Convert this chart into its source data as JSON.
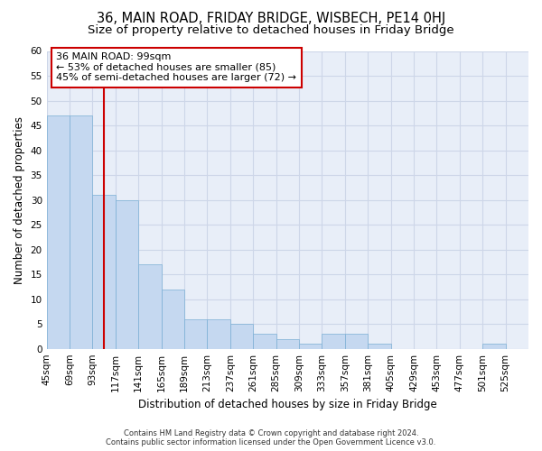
{
  "title1": "36, MAIN ROAD, FRIDAY BRIDGE, WISBECH, PE14 0HJ",
  "title2": "Size of property relative to detached houses in Friday Bridge",
  "xlabel": "Distribution of detached houses by size in Friday Bridge",
  "ylabel": "Number of detached properties",
  "footer1": "Contains HM Land Registry data © Crown copyright and database right 2024.",
  "footer2": "Contains public sector information licensed under the Open Government Licence v3.0.",
  "bins": [
    "45sqm",
    "69sqm",
    "93sqm",
    "117sqm",
    "141sqm",
    "165sqm",
    "189sqm",
    "213sqm",
    "237sqm",
    "261sqm",
    "285sqm",
    "309sqm",
    "333sqm",
    "357sqm",
    "381sqm",
    "405sqm",
    "429sqm",
    "453sqm",
    "477sqm",
    "501sqm",
    "525sqm"
  ],
  "values": [
    47,
    47,
    31,
    30,
    17,
    12,
    6,
    6,
    5,
    3,
    2,
    1,
    3,
    3,
    1,
    0,
    0,
    0,
    0,
    1,
    0
  ],
  "bar_color": "#c5d8f0",
  "bar_edge_color": "#7bafd4",
  "red_line_x": 2.5,
  "annotation_line1": "36 MAIN ROAD: 99sqm",
  "annotation_line2": "← 53% of detached houses are smaller (85)",
  "annotation_line3": "45% of semi-detached houses are larger (72) →",
  "annotation_box_color": "#ffffff",
  "annotation_box_edge": "#cc0000",
  "red_line_color": "#cc0000",
  "ylim": [
    0,
    60
  ],
  "yticks": [
    0,
    5,
    10,
    15,
    20,
    25,
    30,
    35,
    40,
    45,
    50,
    55,
    60
  ],
  "grid_color": "#cdd6e8",
  "bg_color": "#e8eef8",
  "title1_fontsize": 10.5,
  "title2_fontsize": 9.5,
  "title1_weight": "normal",
  "xlabel_fontsize": 8.5,
  "ylabel_fontsize": 8.5,
  "tick_fontsize": 7.5,
  "annotation_fontsize": 8,
  "footer_fontsize": 6
}
